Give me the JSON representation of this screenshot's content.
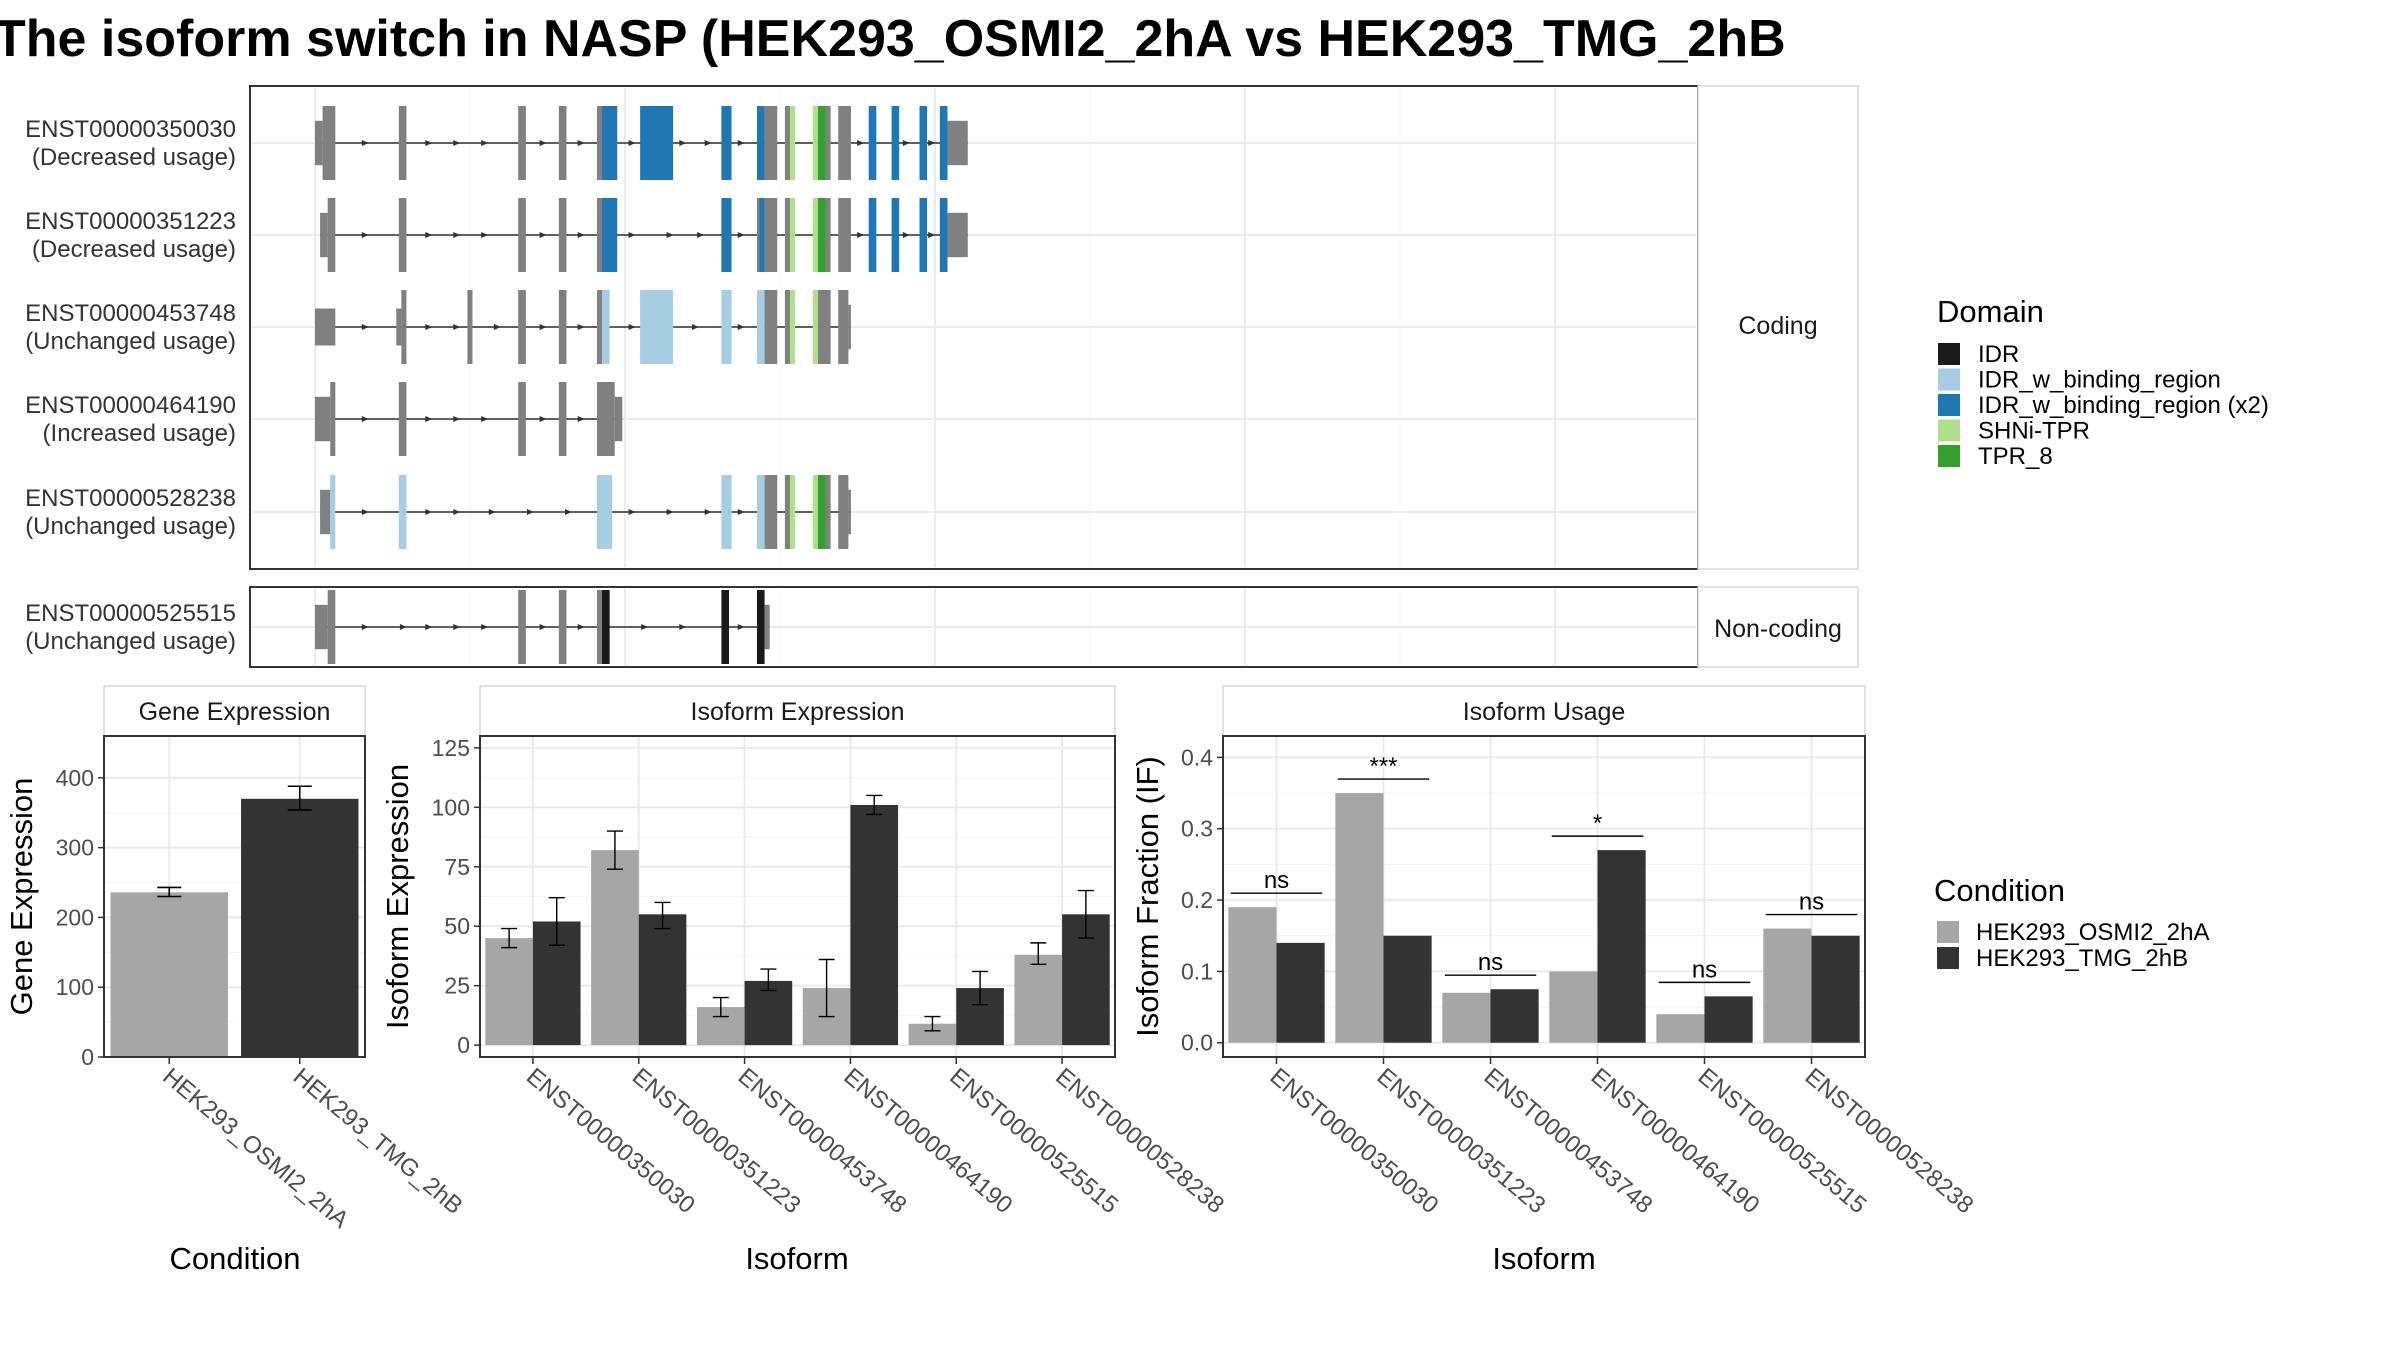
{
  "title": "The isoform switch in NASP (HEK293_OSMI2_2hA vs HEK293_TMG_2hB",
  "colors": {
    "exon_plain": "#808080",
    "IDR": "#1a1a1a",
    "IDR_w_binding_region": "#a6cee3",
    "IDR_w_binding_region_x2": "#1f78b4",
    "SHNi-TPR": "#b2df8a",
    "TPR_8": "#33a02c",
    "cond_a": "#a6a6a6",
    "cond_b": "#333333"
  },
  "structure": {
    "facets": [
      "Coding",
      "Non-coding"
    ],
    "transcripts": [
      {
        "id": "ENST00000350030",
        "usage": "(Decreased usage)",
        "facet": "Coding",
        "exons": [
          [
            0,
            3,
            0.6,
            "plain"
          ],
          [
            3,
            8,
            1,
            "plain"
          ],
          [
            33,
            36,
            1,
            "plain"
          ],
          [
            80,
            83,
            1,
            "plain"
          ],
          [
            96,
            99,
            1,
            "plain"
          ],
          [
            111,
            113,
            1,
            "plain"
          ],
          [
            113,
            119,
            1,
            "x2"
          ],
          [
            128,
            141,
            1,
            "x2"
          ],
          [
            160,
            164,
            1,
            "x2"
          ],
          [
            174,
            177,
            1,
            "x2"
          ],
          [
            177,
            182,
            1,
            "plain"
          ],
          [
            185,
            187,
            1,
            "plain"
          ],
          [
            187,
            189,
            1,
            "SHNi-TPR"
          ],
          [
            196,
            198,
            1,
            "SHNi-TPR"
          ],
          [
            198,
            201,
            1,
            "TPR_8"
          ],
          [
            201,
            203,
            1,
            "plain"
          ],
          [
            206,
            211,
            1,
            "plain"
          ],
          [
            218,
            221,
            1,
            "x2"
          ],
          [
            227,
            230,
            1,
            "x2"
          ],
          [
            238,
            241,
            1,
            "x2"
          ],
          [
            246,
            249,
            1,
            "x2"
          ],
          [
            249,
            257,
            0.6,
            "plain"
          ]
        ],
        "intron_span": [
          0,
          257
        ],
        "arrows": [
          20,
          45,
          56,
          67,
          90,
          105,
          125,
          145,
          155,
          168,
          215,
          233,
          243
        ]
      },
      {
        "id": "ENST00000351223",
        "usage": "(Decreased usage)",
        "facet": "Coding",
        "exons": [
          [
            2,
            5,
            0.6,
            "plain"
          ],
          [
            5,
            8,
            1,
            "plain"
          ],
          [
            33,
            36,
            1,
            "plain"
          ],
          [
            80,
            83,
            1,
            "plain"
          ],
          [
            96,
            99,
            1,
            "plain"
          ],
          [
            111,
            113,
            1,
            "plain"
          ],
          [
            113,
            119,
            1,
            "x2"
          ],
          [
            160,
            164,
            1,
            "x2"
          ],
          [
            174,
            175,
            1,
            "plain"
          ],
          [
            175,
            177,
            1,
            "x2"
          ],
          [
            177,
            182,
            1,
            "plain"
          ],
          [
            185,
            187,
            1,
            "plain"
          ],
          [
            187,
            189,
            1,
            "SHNi-TPR"
          ],
          [
            196,
            198,
            1,
            "SHNi-TPR"
          ],
          [
            198,
            201,
            1,
            "TPR_8"
          ],
          [
            201,
            203,
            1,
            "plain"
          ],
          [
            206,
            211,
            1,
            "plain"
          ],
          [
            218,
            221,
            1,
            "x2"
          ],
          [
            227,
            230,
            1,
            "x2"
          ],
          [
            238,
            241,
            1,
            "x2"
          ],
          [
            246,
            249,
            1,
            "x2"
          ],
          [
            249,
            257,
            0.6,
            "plain"
          ]
        ],
        "intron_span": [
          2,
          257
        ],
        "arrows": [
          20,
          45,
          56,
          67,
          90,
          105,
          125,
          140,
          152,
          168,
          215,
          233,
          243
        ]
      },
      {
        "id": "ENST00000453748",
        "usage": "(Unchanged usage)",
        "facet": "Coding",
        "exons": [
          [
            0,
            8,
            0.5,
            "plain"
          ],
          [
            32,
            34,
            0.5,
            "plain"
          ],
          [
            34,
            36,
            1,
            "plain"
          ],
          [
            60,
            62,
            1,
            "plain"
          ],
          [
            80,
            83,
            1,
            "plain"
          ],
          [
            96,
            99,
            1,
            "plain"
          ],
          [
            111,
            113,
            1,
            "plain"
          ],
          [
            113,
            116,
            1,
            "light"
          ],
          [
            128,
            141,
            1,
            "light"
          ],
          [
            160,
            164,
            1,
            "light"
          ],
          [
            174,
            177,
            1,
            "light"
          ],
          [
            177,
            182,
            1,
            "plain"
          ],
          [
            185,
            187,
            1,
            "plain"
          ],
          [
            187,
            189,
            1,
            "SHNi-TPR"
          ],
          [
            196,
            198,
            1,
            "SHNi-TPR"
          ],
          [
            198,
            203,
            1,
            "plain"
          ],
          [
            206,
            210,
            1,
            "plain"
          ],
          [
            210,
            211,
            0.6,
            "plain"
          ]
        ],
        "intron_span": [
          0,
          211
        ],
        "arrows": [
          20,
          45,
          56,
          72,
          90,
          105,
          125,
          150,
          168
        ]
      },
      {
        "id": "ENST00000464190",
        "usage": "(Increased usage)",
        "facet": "Coding",
        "exons": [
          [
            0,
            6,
            0.6,
            "plain"
          ],
          [
            6,
            8,
            1,
            "plain"
          ],
          [
            33,
            36,
            1,
            "plain"
          ],
          [
            80,
            83,
            1,
            "plain"
          ],
          [
            96,
            99,
            1,
            "plain"
          ],
          [
            111,
            118,
            1,
            "plain"
          ],
          [
            118,
            121,
            0.6,
            "plain"
          ]
        ],
        "intron_span": [
          0,
          121
        ],
        "arrows": [
          20,
          45,
          56,
          67,
          90,
          105
        ]
      },
      {
        "id": "ENST00000528238",
        "usage": "(Unchanged usage)",
        "facet": "Coding",
        "exons": [
          [
            2,
            6,
            0.6,
            "plain"
          ],
          [
            6,
            8,
            1,
            "light"
          ],
          [
            33,
            36,
            1,
            "light"
          ],
          [
            111,
            117,
            1,
            "light"
          ],
          [
            160,
            164,
            1,
            "light"
          ],
          [
            174,
            177,
            1,
            "light"
          ],
          [
            177,
            182,
            1,
            "plain"
          ],
          [
            185,
            187,
            1,
            "plain"
          ],
          [
            187,
            189,
            1,
            "SHNi-TPR"
          ],
          [
            196,
            198,
            1,
            "SHNi-TPR"
          ],
          [
            198,
            201,
            1,
            "TPR_8"
          ],
          [
            201,
            203,
            1,
            "plain"
          ],
          [
            206,
            210,
            1,
            "plain"
          ],
          [
            210,
            211,
            0.6,
            "plain"
          ]
        ],
        "intron_span": [
          2,
          211
        ],
        "arrows": [
          20,
          45,
          56,
          70,
          85,
          100,
          125,
          140,
          155,
          168
        ]
      },
      {
        "id": "ENST00000525515",
        "usage": "(Unchanged usage)",
        "facet": "Non-coding",
        "exons": [
          [
            0,
            5,
            0.6,
            "plain"
          ],
          [
            5,
            8,
            1,
            "plain"
          ],
          [
            80,
            83,
            1,
            "plain"
          ],
          [
            96,
            99,
            1,
            "plain"
          ],
          [
            111,
            113,
            1,
            "plain"
          ],
          [
            113,
            116,
            1,
            "IDR"
          ],
          [
            160,
            163,
            1,
            "IDR"
          ],
          [
            174,
            177,
            1,
            "IDR"
          ],
          [
            177,
            179,
            0.6,
            "plain"
          ]
        ],
        "intron_span": [
          0,
          179
        ],
        "arrows": [
          20,
          35,
          45,
          56,
          67,
          90,
          105,
          130,
          145,
          168
        ]
      }
    ]
  },
  "legend_domain": {
    "title": "Domain",
    "items": [
      {
        "label": "IDR",
        "color": "#1a1a1a"
      },
      {
        "label": "IDR_w_binding_region",
        "color": "#a6cee3"
      },
      {
        "label": "IDR_w_binding_region (x2)",
        "color": "#1f78b4"
      },
      {
        "label": "SHNi-TPR",
        "color": "#b2df8a"
      },
      {
        "label": "TPR_8",
        "color": "#33a02c"
      }
    ]
  },
  "legend_condition": {
    "title": "Condition",
    "items": [
      {
        "label": "HEK293_OSMI2_2hA",
        "color": "#a6a6a6"
      },
      {
        "label": "HEK293_TMG_2hB",
        "color": "#333333"
      }
    ]
  },
  "chart_data": [
    {
      "type": "bar",
      "strip": "Gene Expression",
      "xlabel": "Condition",
      "ylabel": "Gene Expression",
      "categories": [
        "HEK293_OSMI2_2hA",
        "HEK293_TMG_2hB"
      ],
      "values": [
        236,
        370
      ],
      "errors": [
        [
          230,
          243
        ],
        [
          354,
          388
        ]
      ],
      "yticks": [
        0,
        100,
        200,
        300,
        400
      ],
      "ylim": [
        0,
        460
      ]
    },
    {
      "type": "bar",
      "strip": "Isoform Expression",
      "xlabel": "Isoform",
      "ylabel": "Isoform Expression",
      "categories": [
        "ENST00000350030",
        "ENST00000351223",
        "ENST00000453748",
        "ENST00000464190",
        "ENST00000525515",
        "ENST00000528238"
      ],
      "series": [
        {
          "name": "HEK293_OSMI2_2hA",
          "values": [
            45,
            82,
            16,
            24,
            9,
            38
          ],
          "errors": [
            [
              41,
              49
            ],
            [
              74,
              90
            ],
            [
              12,
              20
            ],
            [
              12,
              36
            ],
            [
              6,
              12
            ],
            [
              34,
              43
            ]
          ]
        },
        {
          "name": "HEK293_TMG_2hB",
          "values": [
            52,
            55,
            27,
            101,
            24,
            55
          ],
          "errors": [
            [
              42,
              62
            ],
            [
              49,
              60
            ],
            [
              23,
              32
            ],
            [
              97,
              105
            ],
            [
              17,
              31
            ],
            [
              45,
              65
            ]
          ]
        }
      ],
      "yticks": [
        0,
        25,
        50,
        75,
        100,
        125
      ],
      "ylim": [
        -5,
        130
      ]
    },
    {
      "type": "bar",
      "strip": "Isoform Usage",
      "xlabel": "Isoform",
      "ylabel": "Isoform Fraction (IF)",
      "categories": [
        "ENST00000350030",
        "ENST00000351223",
        "ENST00000453748",
        "ENST00000464190",
        "ENST00000525515",
        "ENST00000528238"
      ],
      "series": [
        {
          "name": "HEK293_OSMI2_2hA",
          "values": [
            0.19,
            0.35,
            0.07,
            0.1,
            0.04,
            0.16
          ]
        },
        {
          "name": "HEK293_TMG_2hB",
          "values": [
            0.14,
            0.15,
            0.075,
            0.27,
            0.065,
            0.15
          ]
        }
      ],
      "significance": [
        "ns",
        "***",
        "ns",
        "*",
        "ns",
        "ns"
      ],
      "yticks": [
        0.0,
        0.1,
        0.2,
        0.3,
        0.4
      ],
      "ylim": [
        -0.02,
        0.43
      ]
    }
  ]
}
